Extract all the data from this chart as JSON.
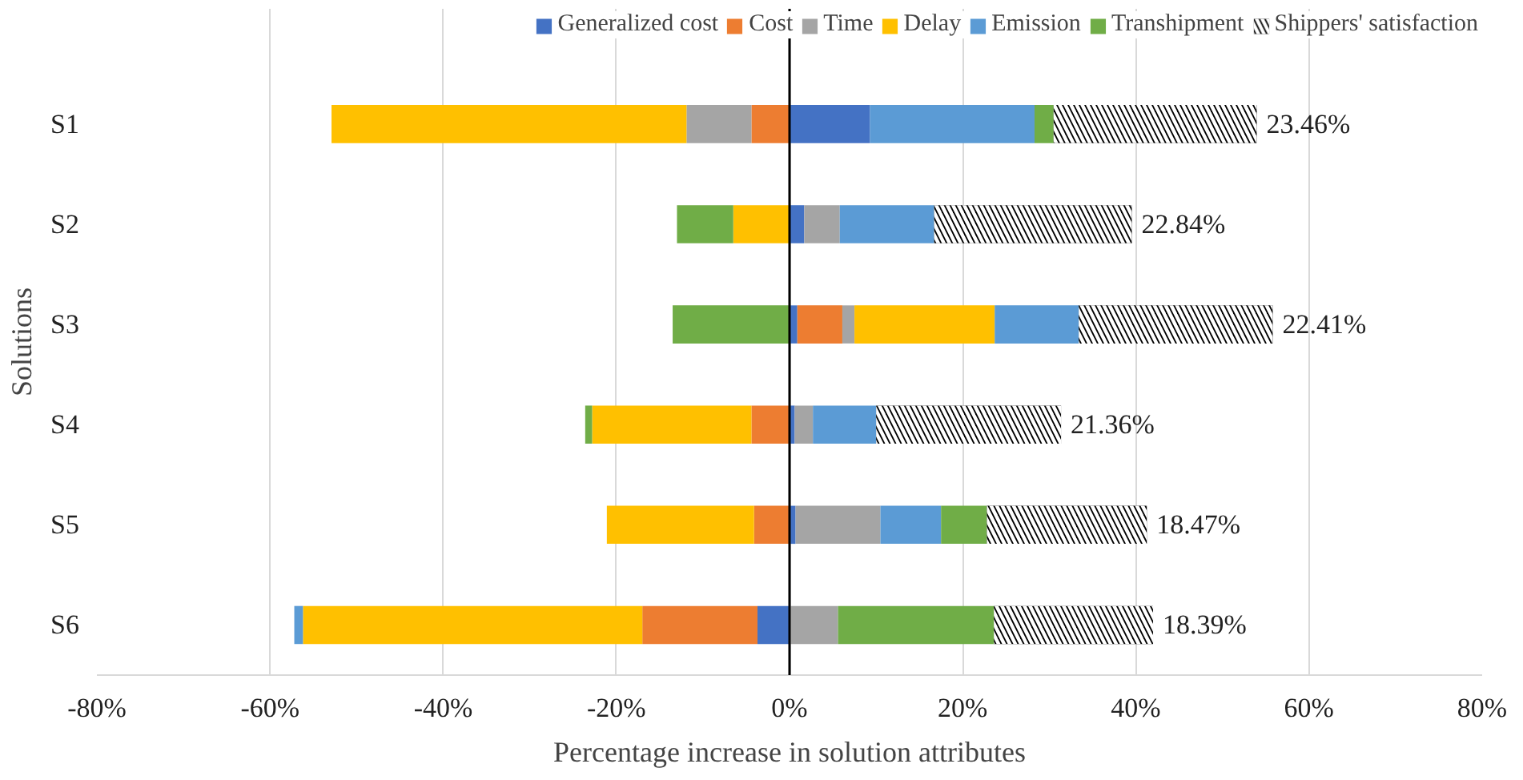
{
  "chart_data": {
    "type": "bar",
    "orientation": "horizontal",
    "stacked": true,
    "categories": [
      "S1",
      "S2",
      "S3",
      "S4",
      "S5",
      "S6"
    ],
    "xlabel": "Percentage increase in solution attributes",
    "ylabel": "Solutions",
    "xlim": [
      -80,
      80
    ],
    "xticks": [
      {
        "value": -80,
        "label": "-80%"
      },
      {
        "value": -60,
        "label": "-60%"
      },
      {
        "value": -40,
        "label": "-40%"
      },
      {
        "value": -20,
        "label": "-20%"
      },
      {
        "value": 0,
        "label": "0%"
      },
      {
        "value": 20,
        "label": "20%"
      },
      {
        "value": 40,
        "label": "40%"
      },
      {
        "value": 60,
        "label": "60%"
      },
      {
        "value": 80,
        "label": "80%"
      }
    ],
    "grid": "x",
    "legend": "top",
    "series": [
      {
        "name": "Generalized cost",
        "color": "#4472c4",
        "values": [
          9.3,
          1.7,
          0.9,
          0.6,
          0.7,
          -3.7
        ]
      },
      {
        "name": "Cost",
        "color": "#ed7d31",
        "values": [
          -4.4,
          null,
          5.2,
          -4.4,
          -4.1,
          -13.3
        ]
      },
      {
        "name": "Time",
        "color": "#a5a5a5",
        "values": [
          -7.5,
          4.1,
          1.4,
          2.1,
          9.8,
          5.6
        ]
      },
      {
        "name": "Delay",
        "color": "#ffc000",
        "values": [
          -41.0,
          -6.5,
          16.2,
          -18.4,
          -17.0,
          -39.2
        ]
      },
      {
        "name": "Emission",
        "color": "#5b9bd5",
        "values": [
          19.0,
          10.9,
          9.7,
          7.3,
          7.0,
          -1.0
        ]
      },
      {
        "name": "Transhipment",
        "color": "#70ad47",
        "values": [
          2.2,
          -6.5,
          -13.5,
          -0.8,
          5.3,
          18.0
        ]
      },
      {
        "name": "Shippers' satisfaction",
        "color": "#000000",
        "values": [
          23.46,
          22.84,
          22.41,
          21.36,
          18.47,
          18.39
        ],
        "value_labels": [
          "23.46%",
          "22.84%",
          "22.41%",
          "21.36%",
          "18.47%",
          "18.39%"
        ]
      }
    ]
  }
}
